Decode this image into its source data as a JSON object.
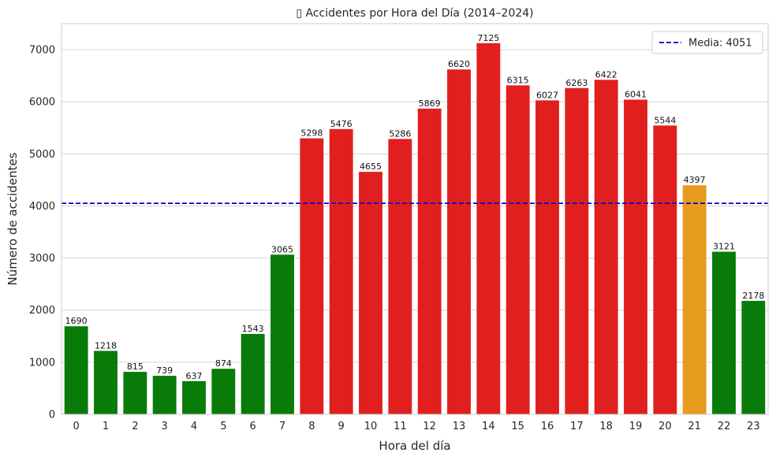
{
  "chart_data": {
    "type": "bar",
    "title": "▯ Accidentes por Hora del Día (2014–2024)",
    "xlabel": "Hora del día",
    "ylabel": "Número de accidentes",
    "categories": [
      "0",
      "1",
      "2",
      "3",
      "4",
      "5",
      "6",
      "7",
      "8",
      "9",
      "10",
      "11",
      "12",
      "13",
      "14",
      "15",
      "16",
      "17",
      "18",
      "19",
      "20",
      "21",
      "22",
      "23"
    ],
    "values": [
      1690,
      1218,
      815,
      739,
      637,
      874,
      1543,
      3065,
      5298,
      5476,
      4655,
      5286,
      5869,
      6620,
      7125,
      6315,
      6027,
      6263,
      6422,
      6041,
      5544,
      4397,
      3121,
      2178
    ],
    "data_labels": [
      "1690",
      "1218",
      "815",
      "739",
      "637",
      "874",
      "1543",
      "3065",
      "5298",
      "5476",
      "4655",
      "5286",
      "5869",
      "6620",
      "7125",
      "6315",
      "6027",
      "6263",
      "6422",
      "6041",
      "5544",
      "4397",
      "3121",
      "2178"
    ],
    "bar_colors": [
      "#087b08",
      "#087b08",
      "#087b08",
      "#087b08",
      "#087b08",
      "#087b08",
      "#087b08",
      "#087b08",
      "#e11f1f",
      "#e11f1f",
      "#e11f1f",
      "#e11f1f",
      "#e11f1f",
      "#e11f1f",
      "#e11f1f",
      "#e11f1f",
      "#e11f1f",
      "#e11f1f",
      "#e11f1f",
      "#e11f1f",
      "#e11f1f",
      "#e79b1c",
      "#087b08",
      "#087b08"
    ],
    "ylim": [
      0,
      7500
    ],
    "yticks": [
      0,
      1000,
      2000,
      3000,
      4000,
      5000,
      6000,
      7000
    ],
    "ytick_labels": [
      "0",
      "1000",
      "2000",
      "3000",
      "4000",
      "5000",
      "6000",
      "7000"
    ],
    "grid": true,
    "mean_line": {
      "value": 4051,
      "color": "#0000cc",
      "style": "dashed"
    },
    "legend": {
      "position": "top-right",
      "entries": [
        "Media: 4051"
      ]
    }
  }
}
